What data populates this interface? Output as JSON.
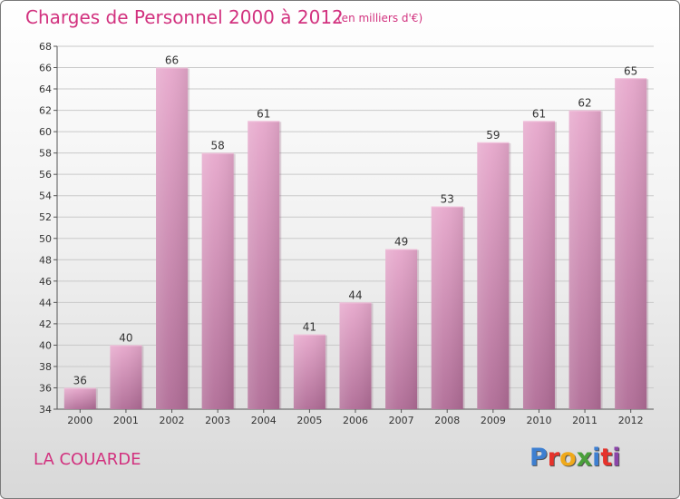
{
  "header": {
    "title": "Charges de Personnel 2000 à 2012",
    "subtitle": "(en milliers d'€)"
  },
  "footer": {
    "commune": "LA COUARDE",
    "logo_text": "Proxiti",
    "logo_colors": [
      "#3d7fd1",
      "#e6322b",
      "#f0a91a",
      "#4aa03b",
      "#3d7fd1",
      "#e6322b",
      "#8a45a8"
    ]
  },
  "chart_data": {
    "type": "bar",
    "categories": [
      "2000",
      "2001",
      "2002",
      "2003",
      "2004",
      "2005",
      "2006",
      "2007",
      "2008",
      "2009",
      "2010",
      "2011",
      "2012"
    ],
    "values": [
      36,
      40,
      66,
      58,
      61,
      41,
      44,
      49,
      53,
      59,
      61,
      62,
      65
    ],
    "ylim": [
      34,
      68
    ],
    "yticks": [
      34,
      36,
      38,
      40,
      42,
      44,
      46,
      48,
      50,
      52,
      54,
      56,
      58,
      60,
      62,
      64,
      66,
      68
    ],
    "grid": true,
    "bar_color_top": "#e7a8cc",
    "bar_color_bottom": "#b06c96"
  }
}
